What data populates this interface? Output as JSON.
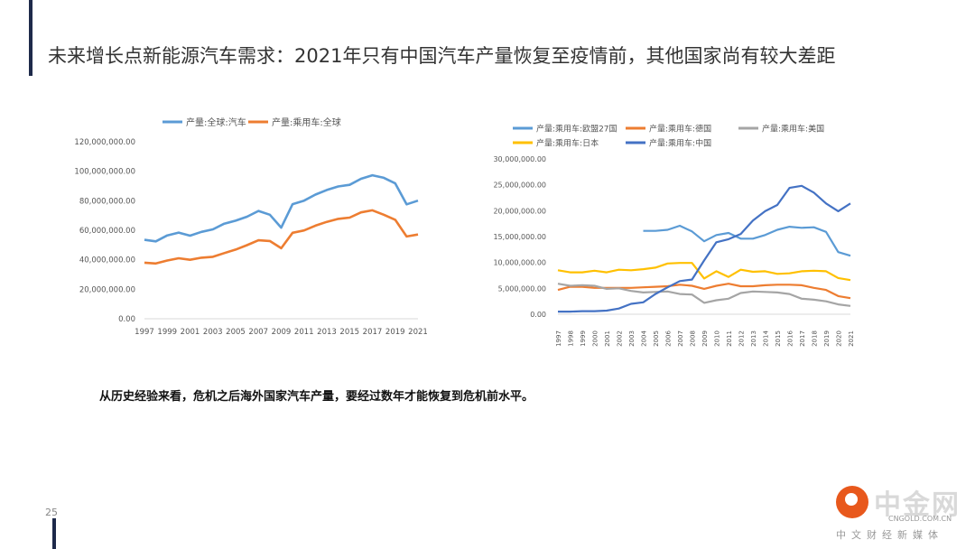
{
  "slide": {
    "title": "未来增长点新能源汽车需求：2021年只有中国汽车产量恢复至疫情前，其他国家尚有较大差距",
    "note": "从历史经验来看，危机之后海外国家汽车产量，要经过数年才能恢复到危机前水平。",
    "page_number": "25"
  },
  "watermark": {
    "name": "中金网",
    "domain": "CNGOLD.COM.CN",
    "tagline": "中文财经新媒体"
  },
  "chart_data": [
    {
      "type": "line",
      "title": "",
      "x": [
        "1997",
        "1998",
        "1999",
        "2000",
        "2001",
        "2002",
        "2003",
        "2004",
        "2005",
        "2006",
        "2007",
        "2008",
        "2009",
        "2010",
        "2011",
        "2012",
        "2013",
        "2014",
        "2015",
        "2016",
        "2017",
        "2018",
        "2019",
        "2020",
        "2021"
      ],
      "x_tick_labels": [
        "1997",
        "1999",
        "2001",
        "2003",
        "2005",
        "2007",
        "2009",
        "2011",
        "2013",
        "2015",
        "2017",
        "2019",
        "2021"
      ],
      "ylim": [
        0,
        120000000
      ],
      "y_tick_labels": [
        "0.00",
        "20,000,000.00",
        "40,000,000.00",
        "60,000,000.00",
        "80,000,000.00",
        "100,000,000.00",
        "120,000,000.00"
      ],
      "legend_position": "top",
      "series": [
        {
          "name": "产量:全球:汽车",
          "color": "#5b9bd5",
          "values": [
            53500000,
            52500000,
            56500000,
            58400000,
            56300000,
            58900000,
            60600000,
            64500000,
            66500000,
            69200000,
            73100000,
            70500000,
            61800000,
            77700000,
            80100000,
            84200000,
            87300000,
            89700000,
            90800000,
            94900000,
            97300000,
            95600000,
            91800000,
            77600000,
            80100000
          ]
        },
        {
          "name": "产量:乘用车:全球",
          "color": "#ed7d31",
          "values": [
            38000000,
            37500000,
            39500000,
            41000000,
            40000000,
            41400000,
            42000000,
            44500000,
            46900000,
            49900000,
            53200000,
            52700000,
            47800000,
            58300000,
            59900000,
            63100000,
            65700000,
            67700000,
            68600000,
            72100000,
            73500000,
            70500000,
            67100000,
            55800000,
            57100000
          ]
        }
      ]
    },
    {
      "type": "line",
      "title": "",
      "x": [
        "1997",
        "1998",
        "1999",
        "2000",
        "2001",
        "2002",
        "2003",
        "2004",
        "2005",
        "2006",
        "2007",
        "2008",
        "2009",
        "2010",
        "2011",
        "2012",
        "2013",
        "2014",
        "2015",
        "2016",
        "2017",
        "2018",
        "2019",
        "2020",
        "2021"
      ],
      "ylim": [
        0,
        30000000
      ],
      "y_tick_labels": [
        "0.00",
        "5,000,000.00",
        "10,000,000.00",
        "15,000,000.00",
        "20,000,000.00",
        "25,000,000.00",
        "30,000,000.00"
      ],
      "legend_position": "top",
      "series": [
        {
          "name": "产量:乘用车:欧盟27国",
          "color": "#5b9bd5",
          "values": [
            null,
            null,
            null,
            null,
            null,
            null,
            null,
            16100000,
            16100000,
            16300000,
            17100000,
            16000000,
            14100000,
            15300000,
            15700000,
            14600000,
            14600000,
            15300000,
            16300000,
            16900000,
            16700000,
            16800000,
            15900000,
            12000000,
            11300000
          ]
        },
        {
          "name": "产量:乘用车:德国",
          "color": "#ed7d31",
          "values": [
            4700000,
            5300000,
            5300000,
            5100000,
            5100000,
            5100000,
            5100000,
            5200000,
            5300000,
            5400000,
            5700000,
            5500000,
            4900000,
            5500000,
            5900000,
            5400000,
            5400000,
            5600000,
            5700000,
            5700000,
            5600000,
            5100000,
            4700000,
            3500000,
            3100000
          ]
        },
        {
          "name": "产量:乘用车:美国",
          "color": "#a5a5a5",
          "values": [
            5900000,
            5500000,
            5600000,
            5500000,
            4900000,
            5000000,
            4500000,
            4200000,
            4300000,
            4400000,
            3900000,
            3800000,
            2200000,
            2700000,
            3000000,
            4100000,
            4400000,
            4300000,
            4200000,
            3900000,
            3000000,
            2800000,
            2500000,
            1900000,
            1600000
          ]
        },
        {
          "name": "产量:乘用车:日本",
          "color": "#ffc000",
          "values": [
            8500000,
            8100000,
            8100000,
            8400000,
            8100000,
            8600000,
            8500000,
            8700000,
            9000000,
            9800000,
            9900000,
            9900000,
            6900000,
            8300000,
            7200000,
            8600000,
            8200000,
            8300000,
            7800000,
            7900000,
            8300000,
            8400000,
            8300000,
            7000000,
            6600000
          ]
        },
        {
          "name": "产量:乘用车:中国",
          "color": "#4472c4",
          "values": [
            500000,
            500000,
            600000,
            600000,
            700000,
            1100000,
            2000000,
            2300000,
            3900000,
            5200000,
            6400000,
            6700000,
            10400000,
            13900000,
            14500000,
            15500000,
            18100000,
            19900000,
            21100000,
            24400000,
            24800000,
            23500000,
            21400000,
            19900000,
            21400000
          ]
        }
      ]
    }
  ]
}
